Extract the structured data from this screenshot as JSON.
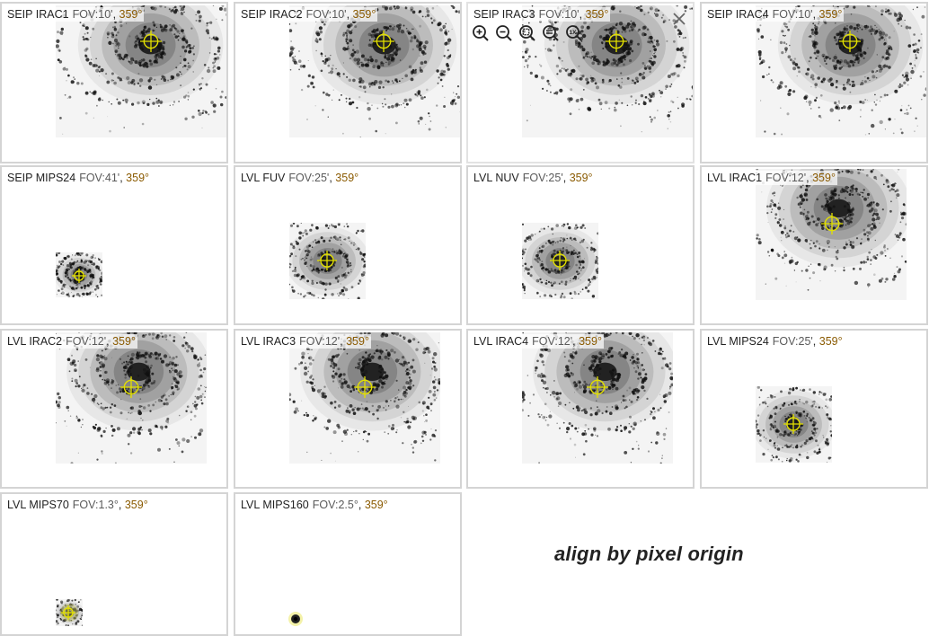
{
  "panels": [
    {
      "band": "SEIP IRAC1",
      "fov": "FOV:10'",
      "rot": "359°",
      "style": "spiral"
    },
    {
      "band": "SEIP IRAC2",
      "fov": "FOV:10'",
      "rot": "359°",
      "style": "spiral"
    },
    {
      "band": "SEIP IRAC3",
      "fov": "FOV:10'",
      "rot": "359°",
      "style": "spiral"
    },
    {
      "band": "SEIP IRAC4",
      "fov": "FOV:10'",
      "rot": "359°",
      "style": "spiral"
    },
    {
      "band": "SEIP MIPS24",
      "fov": "FOV:41'",
      "rot": "359°",
      "style": "small"
    },
    {
      "band": "LVL FUV",
      "fov": "FOV:25'",
      "rot": "359°",
      "style": "small"
    },
    {
      "band": "LVL NUV",
      "fov": "FOV:25'",
      "rot": "359°",
      "style": "small"
    },
    {
      "band": "LVL IRAC1",
      "fov": "FOV:12'",
      "rot": "359°",
      "style": "spiral"
    },
    {
      "band": "LVL IRAC2",
      "fov": "FOV:12'",
      "rot": "359°",
      "style": "spiral"
    },
    {
      "band": "LVL IRAC3",
      "fov": "FOV:12'",
      "rot": "359°",
      "style": "spiral"
    },
    {
      "band": "LVL IRAC4",
      "fov": "FOV:12'",
      "rot": "359°",
      "style": "spiral"
    },
    {
      "band": "LVL MIPS24",
      "fov": "FOV:25'",
      "rot": "359°",
      "style": "small"
    },
    {
      "band": "LVL MIPS70",
      "fov": "FOV:1.3°",
      "rot": "359°",
      "style": "tiny"
    },
    {
      "band": "LVL MIPS160",
      "fov": "FOV:2.5°",
      "rot": "359°",
      "style": "dot"
    }
  ],
  "label_separator": ",",
  "toolbar": {
    "icons": [
      "zoom-in-icon",
      "zoom-out-icon",
      "zoom-fit-icon",
      "zoom-fill-icon",
      "zoom-1x-icon"
    ],
    "one_x": "1X",
    "close_icon": "close-icon"
  },
  "align_text": "align by pixel origin",
  "colors": {
    "crosshair": "#e3e000",
    "border": "#d4d4d4",
    "rotation_text": "#8a5a00"
  }
}
